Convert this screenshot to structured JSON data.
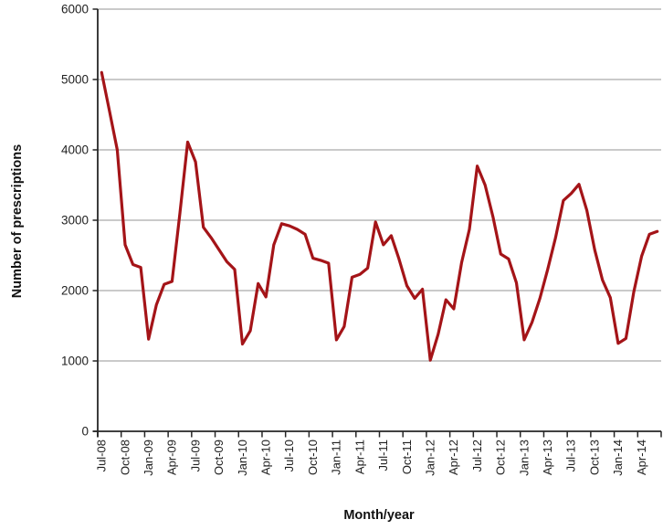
{
  "figure": {
    "background": "#ffffff",
    "xlabel": "Month/year",
    "ylabel": "Number of prescriptions"
  },
  "chart_data": {
    "type": "line",
    "title": "",
    "xlabel": "Month/year",
    "ylabel": "Number of prescriptions",
    "ylim": [
      0,
      6000
    ],
    "yticks": [
      0,
      1000,
      2000,
      3000,
      4000,
      5000,
      6000
    ],
    "grid": "horizontal",
    "legend": "none",
    "line_color": "#A41418",
    "gridline_color": "#ABABAB",
    "axis_color": "#262626",
    "tick_label_color": "#1F1F1F",
    "xtick_label_interval_months": 3,
    "xtick_labels": [
      "Jul-08",
      "Oct-08",
      "Jan-09",
      "Apr-09",
      "Jul-09",
      "Oct-09",
      "Jan-10",
      "Apr-10",
      "Jul-10",
      "Oct-10",
      "Jan-11",
      "Apr-11",
      "Jul-11",
      "Oct-11",
      "Jan-12",
      "Apr-12",
      "Jul-12",
      "Oct-12",
      "Jan-13",
      "Apr-13",
      "Jul-13",
      "Oct-13",
      "Jan-14",
      "Apr-14"
    ],
    "x": [
      "Jul-08",
      "Aug-08",
      "Sep-08",
      "Oct-08",
      "Nov-08",
      "Dec-08",
      "Jan-09",
      "Feb-09",
      "Mar-09",
      "Apr-09",
      "May-09",
      "Jun-09",
      "Jul-09",
      "Aug-09",
      "Sep-09",
      "Oct-09",
      "Nov-09",
      "Dec-09",
      "Jan-10",
      "Feb-10",
      "Mar-10",
      "Apr-10",
      "May-10",
      "Jun-10",
      "Jul-10",
      "Aug-10",
      "Sep-10",
      "Oct-10",
      "Nov-10",
      "Dec-10",
      "Jan-11",
      "Feb-11",
      "Mar-11",
      "Apr-11",
      "May-11",
      "Jun-11",
      "Jul-11",
      "Aug-11",
      "Sep-11",
      "Oct-11",
      "Nov-11",
      "Dec-11",
      "Jan-12",
      "Feb-12",
      "Mar-12",
      "Apr-12",
      "May-12",
      "Jun-12",
      "Jul-12",
      "Aug-12",
      "Sep-12",
      "Oct-12",
      "Nov-12",
      "Dec-12",
      "Jan-13",
      "Feb-13",
      "Mar-13",
      "Apr-13",
      "May-13",
      "Jun-13",
      "Jul-13",
      "Aug-13",
      "Sep-13",
      "Oct-13",
      "Nov-13",
      "Dec-13",
      "Jan-14",
      "Feb-14",
      "Mar-14",
      "Apr-14",
      "May-14",
      "Jun-14"
    ],
    "values": [
      5100,
      4550,
      4000,
      2650,
      2370,
      2330,
      1310,
      1800,
      2090,
      2130,
      3100,
      4110,
      3830,
      2900,
      2750,
      2580,
      2410,
      2300,
      1240,
      1430,
      2100,
      1910,
      2650,
      2950,
      2920,
      2870,
      2800,
      2460,
      2430,
      2390,
      1300,
      1490,
      2190,
      2230,
      2320,
      2975,
      2650,
      2780,
      2450,
      2070,
      1890,
      2020,
      1010,
      1380,
      1870,
      1740,
      2400,
      2870,
      3770,
      3500,
      3050,
      2520,
      2450,
      2110,
      1300,
      1550,
      1890,
      2300,
      2750,
      3280,
      3380,
      3510,
      3140,
      2580,
      2150,
      1900,
      1250,
      1320,
      1980,
      2490,
      2800,
      2840
    ]
  }
}
